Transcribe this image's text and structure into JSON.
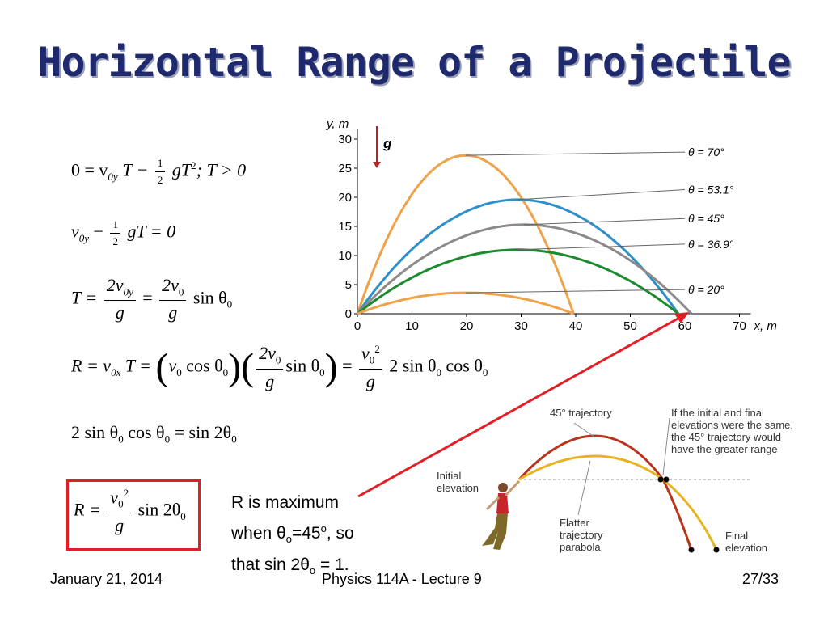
{
  "title": "Horizontal Range of a Projectile",
  "equations": {
    "eq1_a": "0 = v",
    "eq1_sub": "0y",
    "eq1_b": "T −",
    "eq1_frac_num": "1",
    "eq1_frac_den": "2",
    "eq1_c": "gT",
    "eq1_sup": "2",
    "eq1_d": ";   T > 0",
    "eq2_a": "v",
    "eq2_sub": "0y",
    "eq2_b": " −",
    "eq2_frac_num": "1",
    "eq2_frac_den": "2",
    "eq2_c": "gT = 0",
    "eq3_lhs": "T =",
    "eq3_f1_num": "2v",
    "eq3_f1_num_sub": "0y",
    "eq3_f1_den": "g",
    "eq3_eq": "=",
    "eq3_f2_num": "2v",
    "eq3_f2_num_sub": "0",
    "eq3_f2_den": "g",
    "eq3_tail": "sin θ",
    "eq3_tail_sub": "0",
    "eq4_a": "R = v",
    "eq4_sub": "0x",
    "eq4_b": "T =",
    "eq4_c": "v",
    "eq4_c_sub": "0",
    "eq4_d": " cos θ",
    "eq4_d_sub": "0",
    "eq4_f_num": "2v",
    "eq4_f_num_sub": "0",
    "eq4_f_den": "g",
    "eq4_e": "sin θ",
    "eq4_e_sub": "0",
    "eq4_eq": "=",
    "eq4_g_num": "v",
    "eq4_g_num_sub": "0",
    "eq4_g_num_sup": "2",
    "eq4_g_den": "g",
    "eq4_h": "2 sin θ",
    "eq4_h_sub": "0",
    "eq4_i": " cos θ",
    "eq4_i_sub": "0",
    "eq5_a": "2 sin θ",
    "eq5_a_sub": "0",
    "eq5_b": " cos θ",
    "eq5_b_sub": "0",
    "eq5_c": " = sin 2θ",
    "eq5_c_sub": "0",
    "eq6_a": "R =",
    "eq6_num": "v",
    "eq6_num_sub": "0",
    "eq6_num_sup": "2",
    "eq6_den": "g",
    "eq6_b": "sin 2θ",
    "eq6_b_sub": "0"
  },
  "note": {
    "line1": "R is maximum",
    "line2_a": "when θ",
    "line2_sub": "o",
    "line2_b": "=45",
    "line2_sup": "o",
    "line2_c": ", so",
    "line3_a": "that sin 2θ",
    "line3_sub": "o",
    "line3_b": " = 1."
  },
  "chart_data": {
    "type": "line",
    "xlabel": "x, m",
    "ylabel": "y, m",
    "xlim": [
      0,
      70
    ],
    "ylim": [
      0,
      30
    ],
    "xticks": [
      0,
      10,
      20,
      30,
      40,
      50,
      60,
      70
    ],
    "yticks": [
      0,
      5,
      10,
      15,
      20,
      25,
      30
    ],
    "gravity_label": "g",
    "series": [
      {
        "name": "θ = 70°",
        "angle": 70,
        "range": 39.6,
        "max_height": 27.2,
        "color": "#f0a24a"
      },
      {
        "name": "θ = 53.1°",
        "angle": 53.1,
        "range": 58.8,
        "max_height": 19.6,
        "color": "#2f8fc9"
      },
      {
        "name": "θ = 45°",
        "angle": 45,
        "range": 61.2,
        "max_height": 15.3,
        "color": "#8f8a8a"
      },
      {
        "name": "θ = 36.9°",
        "angle": 36.9,
        "range": 58.8,
        "max_height": 11.0,
        "color": "#1c8a2e"
      },
      {
        "name": "θ = 20°",
        "angle": 20,
        "range": 39.6,
        "max_height": 3.6,
        "color": "#f0a24a"
      }
    ]
  },
  "inset": {
    "label_45": "45° trajectory",
    "label_note_1": "If the initial and final",
    "label_note_2": "elevations were the same,",
    "label_note_3": "the 45° trajectory would",
    "label_note_4": "have the greater range",
    "label_initial_1": "Initial",
    "label_initial_2": "elevation",
    "label_flatter_1": "Flatter",
    "label_flatter_2": "trajectory",
    "label_flatter_3": "parabola",
    "label_final_1": "Final",
    "label_final_2": "elevation"
  },
  "footer": {
    "date": "January 21, 2014",
    "course": "Physics 114A  -  Lecture 9",
    "page": "27/33"
  },
  "colors": {
    "title": "#1f2a6e",
    "box": "#e21f26",
    "arrow": "#e21f26"
  }
}
